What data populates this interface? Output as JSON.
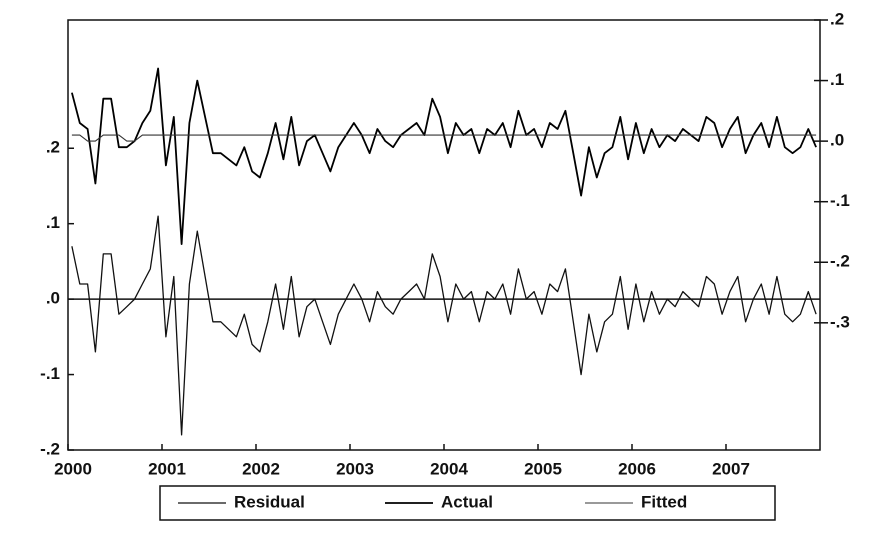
{
  "chart_data": {
    "type": "line",
    "categories": [
      "2000",
      null,
      null,
      null,
      null,
      null,
      null,
      null,
      null,
      null,
      null,
      null,
      "2001",
      null,
      null,
      null,
      null,
      null,
      null,
      null,
      null,
      null,
      null,
      null,
      "2002",
      null,
      null,
      null,
      null,
      null,
      null,
      null,
      null,
      null,
      null,
      null,
      "2003",
      null,
      null,
      null,
      null,
      null,
      null,
      null,
      null,
      null,
      null,
      null,
      "2004",
      null,
      null,
      null,
      null,
      null,
      null,
      null,
      null,
      null,
      null,
      null,
      "2005",
      null,
      null,
      null,
      null,
      null,
      null,
      null,
      null,
      null,
      null,
      null,
      "2006",
      null,
      null,
      null,
      null,
      null,
      null,
      null,
      null,
      null,
      null,
      null,
      "2007",
      null,
      null,
      null,
      null,
      null,
      null,
      null,
      null,
      null,
      null,
      null
    ],
    "series": [
      {
        "name": "Residual",
        "color": "#111111",
        "values": [
          0.07,
          0.02,
          0.02,
          -0.07,
          0.06,
          0.06,
          -0.02,
          -0.01,
          0.0,
          0.02,
          0.04,
          0.11,
          -0.05,
          0.03,
          -0.18,
          0.02,
          0.09,
          0.03,
          -0.03,
          -0.03,
          -0.04,
          -0.05,
          -0.02,
          -0.06,
          -0.07,
          -0.03,
          0.02,
          -0.04,
          0.03,
          -0.05,
          -0.01,
          0.0,
          -0.03,
          -0.06,
          -0.02,
          0.0,
          0.02,
          0.0,
          -0.03,
          0.01,
          -0.01,
          -0.02,
          0.0,
          0.01,
          0.02,
          0.0,
          0.06,
          0.03,
          -0.03,
          0.02,
          0.0,
          0.01,
          -0.03,
          0.01,
          0.0,
          0.02,
          -0.02,
          0.04,
          0.0,
          0.01,
          -0.02,
          0.02,
          0.01,
          0.04,
          -0.03,
          -0.1,
          -0.02,
          -0.07,
          -0.03,
          -0.02,
          0.03,
          -0.04,
          0.02,
          -0.03,
          0.01,
          -0.02,
          0.0,
          -0.01,
          0.01,
          0.0,
          -0.01,
          0.03,
          0.02,
          -0.02,
          0.01,
          0.03,
          -0.03,
          0.0,
          0.02,
          -0.02,
          0.03,
          -0.02,
          -0.03,
          -0.02,
          0.01,
          -0.02
        ]
      },
      {
        "name": "Actual",
        "color": "#000000",
        "axis": "y2",
        "values": [
          0.08,
          0.03,
          0.02,
          -0.07,
          0.07,
          0.07,
          -0.01,
          -0.01,
          0.0,
          0.03,
          0.05,
          0.12,
          -0.04,
          0.04,
          -0.17,
          0.03,
          0.1,
          0.04,
          -0.02,
          -0.02,
          -0.03,
          -0.04,
          -0.01,
          -0.05,
          -0.06,
          -0.02,
          0.03,
          -0.03,
          0.04,
          -0.04,
          0.0,
          0.01,
          -0.02,
          -0.05,
          -0.01,
          0.01,
          0.03,
          0.01,
          -0.02,
          0.02,
          0.0,
          -0.01,
          0.01,
          0.02,
          0.03,
          0.01,
          0.07,
          0.04,
          -0.02,
          0.03,
          0.01,
          0.02,
          -0.02,
          0.02,
          0.01,
          0.03,
          -0.01,
          0.05,
          0.01,
          0.02,
          -0.01,
          0.03,
          0.02,
          0.05,
          -0.02,
          -0.09,
          -0.01,
          -0.06,
          -0.02,
          -0.01,
          0.04,
          -0.03,
          0.03,
          -0.02,
          0.02,
          -0.01,
          0.01,
          0.0,
          0.02,
          0.01,
          0.0,
          0.04,
          0.03,
          -0.01,
          0.02,
          0.04,
          -0.02,
          0.01,
          0.03,
          -0.01,
          0.04,
          -0.01,
          -0.02,
          -0.01,
          0.02,
          -0.01
        ]
      },
      {
        "name": "Fitted",
        "color": "#333333",
        "axis": "y2",
        "values": [
          0.01,
          0.01,
          0.0,
          0.0,
          0.01,
          0.01,
          0.01,
          0.0,
          0.0,
          0.01,
          0.01,
          0.01,
          0.01,
          0.01,
          0.01,
          0.01,
          0.01,
          0.01,
          0.01,
          0.01,
          0.01,
          0.01,
          0.01,
          0.01,
          0.01,
          0.01,
          0.01,
          0.01,
          0.01,
          0.01,
          0.01,
          0.01,
          0.01,
          0.01,
          0.01,
          0.01,
          0.01,
          0.01,
          0.01,
          0.01,
          0.01,
          0.01,
          0.01,
          0.01,
          0.01,
          0.01,
          0.01,
          0.01,
          0.01,
          0.01,
          0.01,
          0.01,
          0.01,
          0.01,
          0.01,
          0.01,
          0.01,
          0.01,
          0.01,
          0.01,
          0.01,
          0.01,
          0.01,
          0.01,
          0.01,
          0.01,
          0.01,
          0.01,
          0.01,
          0.01,
          0.01,
          0.01,
          0.01,
          0.01,
          0.01,
          0.01,
          0.01,
          0.01,
          0.01,
          0.01,
          0.01,
          0.01,
          0.01,
          0.01,
          0.01,
          0.01,
          0.01,
          0.01,
          0.01,
          0.01,
          0.01,
          0.01,
          0.01,
          0.01,
          0.01,
          0.01
        ]
      }
    ],
    "ylim": [
      -0.2,
      0.37
    ],
    "yticks": [
      {
        "value": -0.2,
        "label": "-.2"
      },
      {
        "value": -0.1,
        "label": "-.1"
      },
      {
        "value": 0,
        "label": ".0"
      },
      {
        "value": 0.1,
        "label": ".1"
      },
      {
        "value": 0.2,
        "label": ".2"
      }
    ],
    "y2lim": [
      -0.51,
      0.2
    ],
    "y2ticks": [
      {
        "value": -0.3,
        "label": "-.3"
      },
      {
        "value": -0.2,
        "label": "-.2"
      },
      {
        "value": -0.1,
        "label": "-.1"
      },
      {
        "value": 0,
        "label": ".0"
      },
      {
        "value": 0.1,
        "label": ".1"
      },
      {
        "value": 0.2,
        "label": ".2"
      }
    ]
  }
}
